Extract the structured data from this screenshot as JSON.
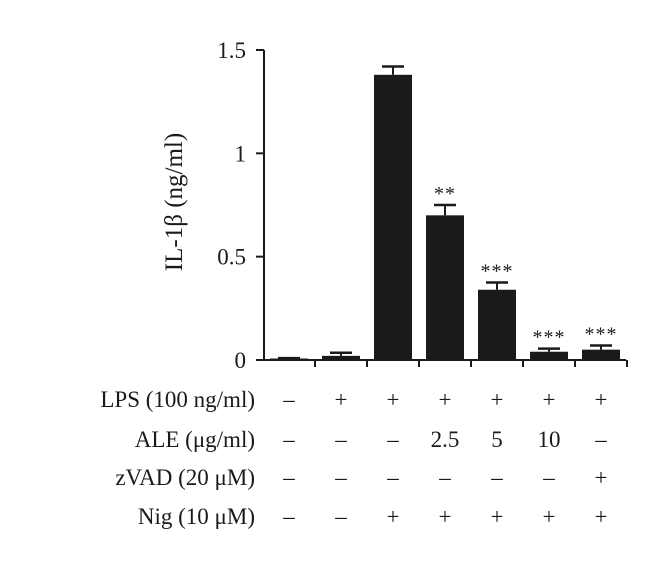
{
  "chart_data": {
    "type": "bar",
    "ylabel": "IL-1β (ng/ml)",
    "ylim": [
      0,
      1.5
    ],
    "yticks": [
      0,
      0.5,
      1,
      1.5
    ],
    "ytick_labels": [
      "0",
      "0.5",
      "1",
      "1.5"
    ],
    "grid": false,
    "legend": "none",
    "bar_color": "#1a1a1a",
    "values": [
      0.005,
      0.02,
      1.38,
      0.7,
      0.34,
      0.04,
      0.05
    ],
    "errors": [
      0.004,
      0.015,
      0.04,
      0.05,
      0.035,
      0.015,
      0.02
    ],
    "significance": [
      "",
      "",
      "",
      "**",
      "***",
      "***",
      "***"
    ],
    "conditions": [
      {
        "label": "LPS (100 ng/ml)",
        "values": [
          "–",
          "+",
          "+",
          "+",
          "+",
          "+",
          "+"
        ]
      },
      {
        "label": "ALE (μg/ml)",
        "values": [
          "–",
          "–",
          "–",
          "2.5",
          "5",
          "10",
          "–"
        ]
      },
      {
        "label": "zVAD (20 μM)",
        "values": [
          "–",
          "–",
          "–",
          "–",
          "–",
          "–",
          "+"
        ]
      },
      {
        "label": "Nig (10 μM)",
        "values": [
          "–",
          "–",
          "+",
          "+",
          "+",
          "+",
          "+"
        ]
      }
    ]
  }
}
